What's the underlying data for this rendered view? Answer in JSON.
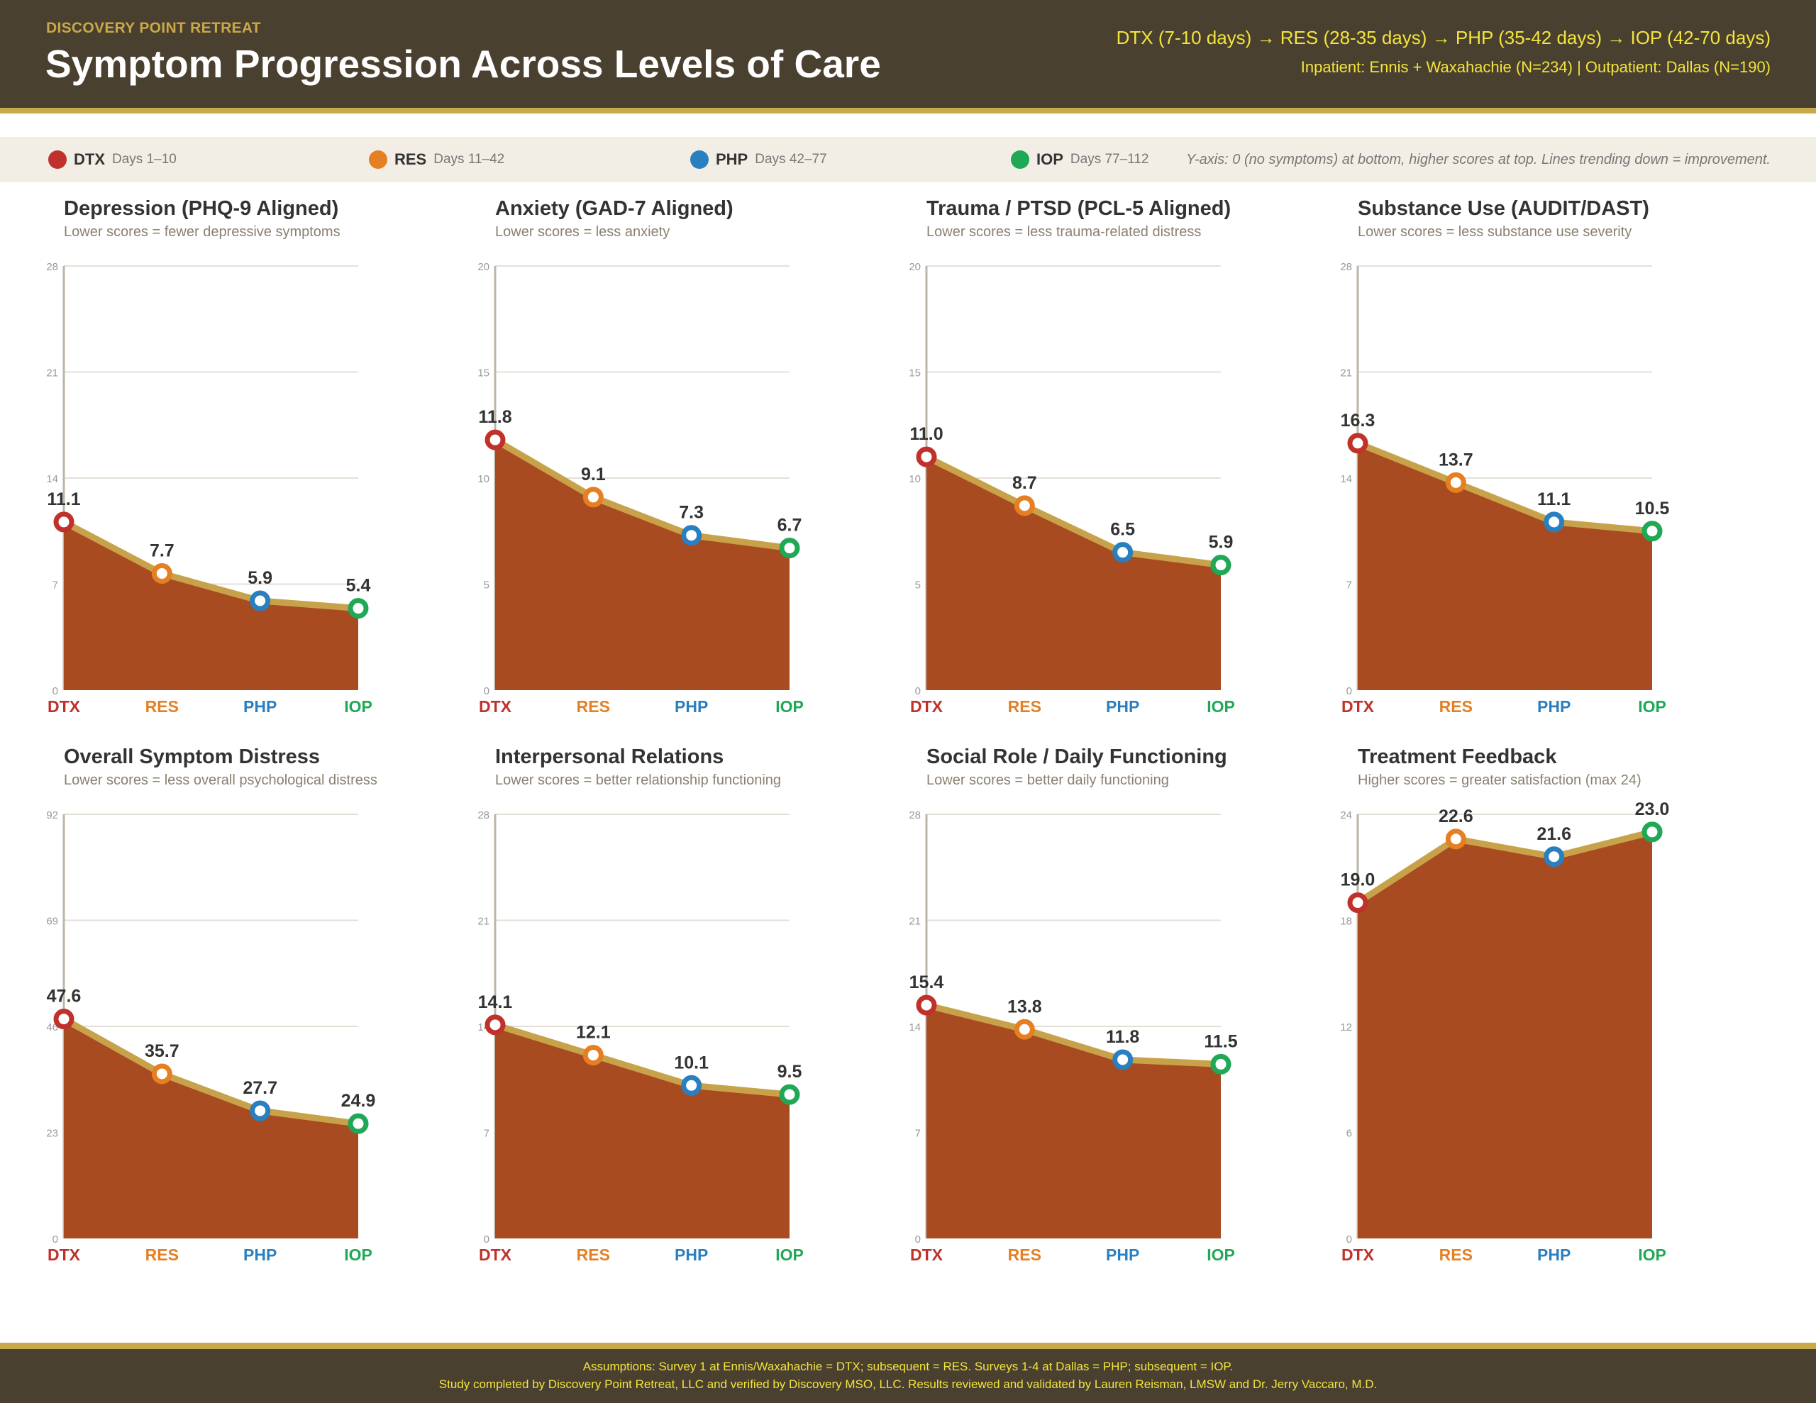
{
  "header": {
    "org": "DISCOVERY POINT RETREAT",
    "title": "Symptom Progression Across Levels of Care",
    "flow": "DTX (7-10 days) → RES (28-35 days) → PHP (35-42 days) → IOP (42-70 days)",
    "sites": "Inpatient: Ennis + Waxahachie (N=234)  |  Outpatient: Dallas (N=190)"
  },
  "legend": {
    "items": [
      {
        "code": "DTX",
        "days": "Days 1–10",
        "color": "#c0312b"
      },
      {
        "code": "RES",
        "days": "Days 11–42",
        "color": "#e67e22"
      },
      {
        "code": "PHP",
        "days": "Days 42–77",
        "color": "#2a7fc0"
      },
      {
        "code": "IOP",
        "days": "Days 77–112",
        "color": "#1fa855"
      }
    ],
    "note": "Y-axis: 0 (no symptoms) at bottom, higher scores at top. Lines trending down = improvement."
  },
  "colors": {
    "area": "#a84b20",
    "line": "#c8a24a",
    "grid": "#e4e0d8",
    "axis": "#bdb5a8"
  },
  "chart_data": [
    {
      "type": "area",
      "title": "Depression (PHQ-9 Aligned)",
      "subtitle": "Lower scores = fewer depressive symptoms",
      "categories": [
        "DTX",
        "RES",
        "PHP",
        "IOP"
      ],
      "values": [
        11.1,
        7.7,
        5.9,
        5.4
      ],
      "labels": [
        "11.1",
        "7.7",
        "5.9",
        "5.4"
      ],
      "ylim": [
        0,
        28
      ],
      "yticks": [
        0,
        7,
        14,
        21,
        28
      ],
      "grid": true
    },
    {
      "type": "area",
      "title": "Anxiety (GAD-7 Aligned)",
      "subtitle": "Lower scores = less anxiety",
      "categories": [
        "DTX",
        "RES",
        "PHP",
        "IOP"
      ],
      "values": [
        11.8,
        9.1,
        7.3,
        6.7
      ],
      "labels": [
        "11.8",
        "9.1",
        "7.3",
        "6.7"
      ],
      "ylim": [
        0,
        20
      ],
      "yticks": [
        0,
        5,
        10,
        15,
        20
      ],
      "grid": true
    },
    {
      "type": "area",
      "title": "Trauma / PTSD (PCL-5 Aligned)",
      "subtitle": "Lower scores = less trauma-related distress",
      "categories": [
        "DTX",
        "RES",
        "PHP",
        "IOP"
      ],
      "values": [
        11.0,
        8.7,
        6.5,
        5.9
      ],
      "labels": [
        "11.0",
        "8.7",
        "6.5",
        "5.9"
      ],
      "ylim": [
        0,
        20
      ],
      "yticks": [
        0,
        5,
        10,
        15,
        20
      ],
      "grid": true
    },
    {
      "type": "area",
      "title": "Substance Use (AUDIT/DAST)",
      "subtitle": "Lower scores = less substance use severity",
      "categories": [
        "DTX",
        "RES",
        "PHP",
        "IOP"
      ],
      "values": [
        16.3,
        13.7,
        11.1,
        10.5
      ],
      "labels": [
        "16.3",
        "13.7",
        "11.1",
        "10.5"
      ],
      "ylim": [
        0,
        28
      ],
      "yticks": [
        0,
        7,
        14,
        21,
        28
      ],
      "grid": true
    },
    {
      "type": "area",
      "title": "Overall Symptom Distress",
      "subtitle": "Lower scores = less overall psychological distress",
      "categories": [
        "DTX",
        "RES",
        "PHP",
        "IOP"
      ],
      "values": [
        47.6,
        35.7,
        27.7,
        24.9
      ],
      "labels": [
        "47.6",
        "35.7",
        "27.7",
        "24.9"
      ],
      "ylim": [
        0,
        92
      ],
      "yticks": [
        0,
        23,
        46,
        69,
        92
      ],
      "grid": true
    },
    {
      "type": "area",
      "title": "Interpersonal Relations",
      "subtitle": "Lower scores = better relationship functioning",
      "categories": [
        "DTX",
        "RES",
        "PHP",
        "IOP"
      ],
      "values": [
        14.1,
        12.1,
        10.1,
        9.5
      ],
      "labels": [
        "14.1",
        "12.1",
        "10.1",
        "9.5"
      ],
      "ylim": [
        0,
        28
      ],
      "yticks": [
        0,
        7,
        14,
        21,
        28
      ],
      "grid": true
    },
    {
      "type": "area",
      "title": "Social Role / Daily Functioning",
      "subtitle": "Lower scores = better daily functioning",
      "categories": [
        "DTX",
        "RES",
        "PHP",
        "IOP"
      ],
      "values": [
        15.4,
        13.8,
        11.8,
        11.5
      ],
      "labels": [
        "15.4",
        "13.8",
        "11.8",
        "11.5"
      ],
      "ylim": [
        0,
        28
      ],
      "yticks": [
        0,
        7,
        14,
        21,
        28
      ],
      "grid": true
    },
    {
      "type": "area",
      "title": "Treatment Feedback",
      "subtitle": "Higher scores = greater satisfaction (max 24)",
      "categories": [
        "DTX",
        "RES",
        "PHP",
        "IOP"
      ],
      "values": [
        19.0,
        22.6,
        21.6,
        23.0
      ],
      "labels": [
        "19.0",
        "22.6",
        "21.6",
        "23.0"
      ],
      "ylim": [
        0,
        24
      ],
      "yticks": [
        0,
        6,
        12,
        18,
        24
      ],
      "grid": true
    }
  ],
  "footer": {
    "line1": "Assumptions: Survey 1 at Ennis/Waxahachie = DTX; subsequent = RES. Surveys 1-4 at Dallas = PHP; subsequent = IOP.",
    "line2": "Study completed by Discovery Point Retreat, LLC and verified by Discovery MSO, LLC. Results reviewed and validated by Lauren Reisman, LMSW and Dr. Jerry Vaccaro, M.D."
  }
}
